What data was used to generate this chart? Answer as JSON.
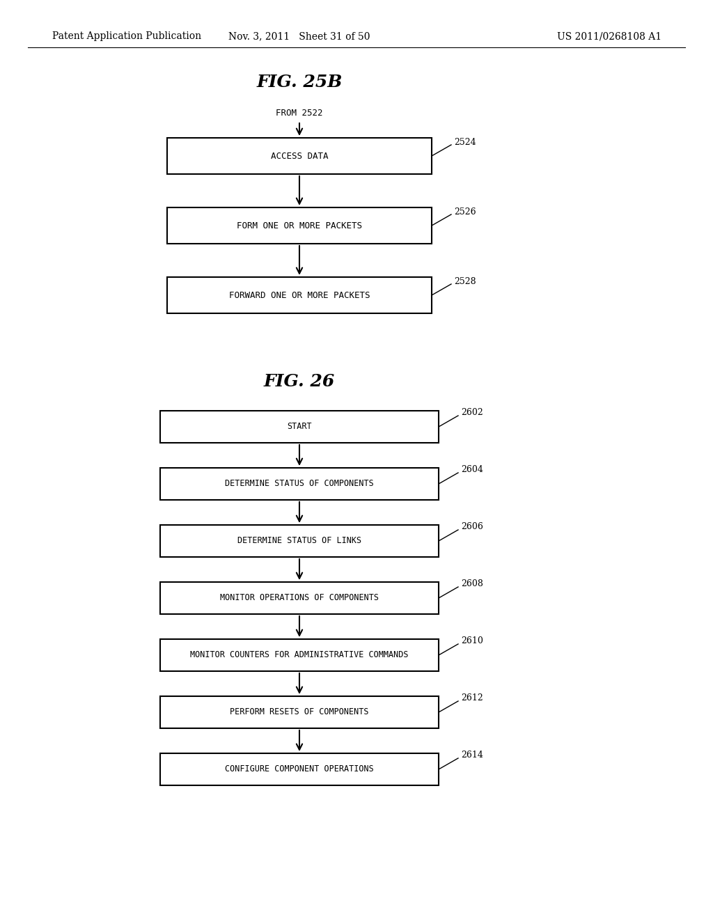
{
  "bg_color": "#ffffff",
  "header_left": "Patent Application Publication",
  "header_mid": "Nov. 3, 2011   Sheet 31 of 50",
  "header_right": "US 2011/0268108 A1",
  "fig25b_title": "FIG. 25B",
  "fig26_title": "FIG. 26",
  "fig25b_from_label": "FROM 2522",
  "fig25b_boxes": [
    {
      "label": "ACCESS DATA",
      "ref": "2524"
    },
    {
      "label": "FORM ONE OR MORE PACKETS",
      "ref": "2526"
    },
    {
      "label": "FORWARD ONE OR MORE PACKETS",
      "ref": "2528"
    }
  ],
  "fig26_boxes": [
    {
      "label": "START",
      "ref": "2602"
    },
    {
      "label": "DETERMINE STATUS OF COMPONENTS",
      "ref": "2604"
    },
    {
      "label": "DETERMINE STATUS OF LINKS",
      "ref": "2606"
    },
    {
      "label": "MONITOR OPERATIONS OF COMPONENTS",
      "ref": "2608"
    },
    {
      "label": "MONITOR COUNTERS FOR ADMINISTRATIVE COMMANDS",
      "ref": "2610"
    },
    {
      "label": "PERFORM RESETS OF COMPONENTS",
      "ref": "2612"
    },
    {
      "label": "CONFIGURE COMPONENT OPERATIONS",
      "ref": "2614"
    }
  ],
  "text_fontsize": 9,
  "ref_fontsize": 9,
  "title_fontsize": 18,
  "header_fontsize": 10
}
